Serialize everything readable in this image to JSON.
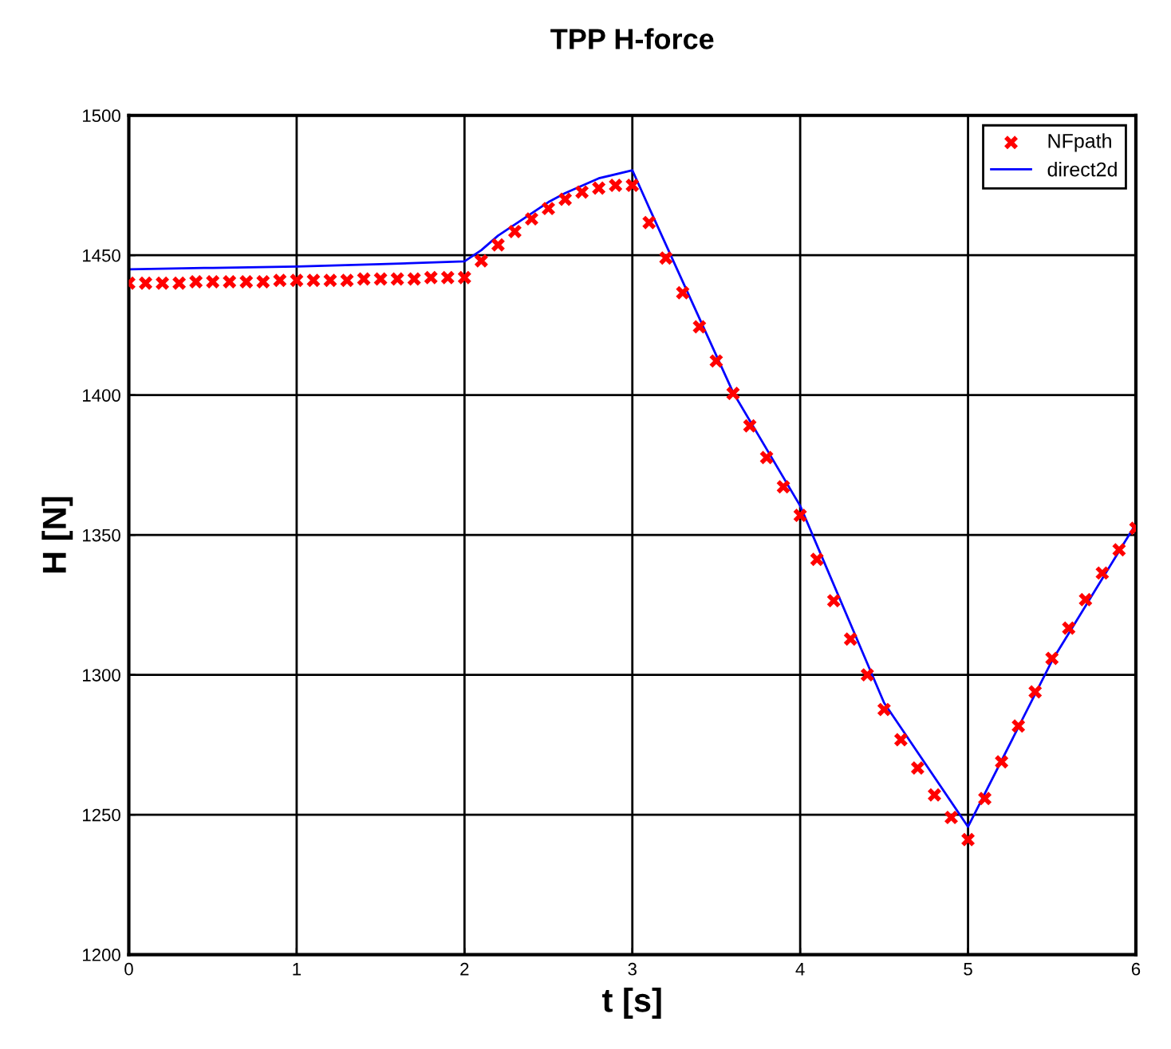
{
  "chart_data": {
    "type": "line",
    "title": "TPP H-force",
    "xlabel": "t [s]",
    "ylabel": "H [N]",
    "xlim": [
      0,
      6
    ],
    "ylim": [
      1200,
      1500
    ],
    "xticks": [
      0,
      1,
      2,
      3,
      4,
      5,
      6
    ],
    "yticks": [
      1200,
      1250,
      1300,
      1350,
      1400,
      1450,
      1500
    ],
    "grid": true,
    "legend": "top right",
    "series": [
      {
        "name": "NFpath",
        "type": "scatter",
        "marker": "cross",
        "color": "#ff0000",
        "x": [
          0,
          0.1,
          0.2,
          0.3,
          0.4,
          0.5,
          0.6,
          0.7,
          0.8,
          0.9,
          1.0,
          1.1,
          1.2,
          1.3,
          1.4,
          1.5,
          1.6,
          1.7,
          1.8,
          1.9,
          2.0,
          2.1,
          2.2,
          2.3,
          2.4,
          2.5,
          2.6,
          2.7,
          2.8,
          2.9,
          3.0,
          3.1,
          3.2,
          3.3,
          3.4,
          3.5,
          3.6,
          3.7,
          3.8,
          3.9,
          4.0,
          4.1,
          4.2,
          4.3,
          4.4,
          4.5,
          4.6,
          4.7,
          4.8,
          4.9,
          5.0,
          5.1,
          5.2,
          5.3,
          5.4,
          5.5,
          5.6,
          5.7,
          5.8,
          5.9,
          6.0
        ],
        "values": [
          1440,
          1440,
          1440,
          1440,
          1440.5,
          1440.5,
          1440.5,
          1440.5,
          1440.5,
          1441,
          1441,
          1441,
          1441,
          1441,
          1441.5,
          1441.5,
          1441.5,
          1441.5,
          1442,
          1442,
          1442,
          1448,
          1453.7,
          1458.5,
          1463,
          1466.7,
          1470,
          1472.6,
          1474,
          1475,
          1475,
          1461.7,
          1449,
          1436.6,
          1424.4,
          1412.2,
          1400.6,
          1389,
          1377.7,
          1367.2,
          1357,
          1341.3,
          1326.5,
          1312.8,
          1300,
          1287.6,
          1276.8,
          1266.7,
          1257.1,
          1249,
          1241.1,
          1255.8,
          1268.9,
          1281.7,
          1293.9,
          1305.9,
          1316.7,
          1326.9,
          1336.4,
          1344.7,
          1352.4
        ]
      },
      {
        "name": "direct2d",
        "marker": "none",
        "line_style": "solid",
        "color": "#0000ff",
        "x": [
          0,
          0.5,
          1.0,
          1.5,
          2.0,
          2.1,
          2.2,
          2.4,
          2.5,
          2.6,
          2.8,
          3.0,
          3.1,
          3.6,
          4.0,
          4.5,
          5.0,
          5.5,
          6.0
        ],
        "values": [
          1445,
          1445.5,
          1446,
          1446.8,
          1447.8,
          1451.8,
          1457,
          1465,
          1469,
          1472.2,
          1477.5,
          1480.4,
          1467,
          1401,
          1360.4,
          1290,
          1245.7,
          1305,
          1354
        ]
      }
    ]
  }
}
